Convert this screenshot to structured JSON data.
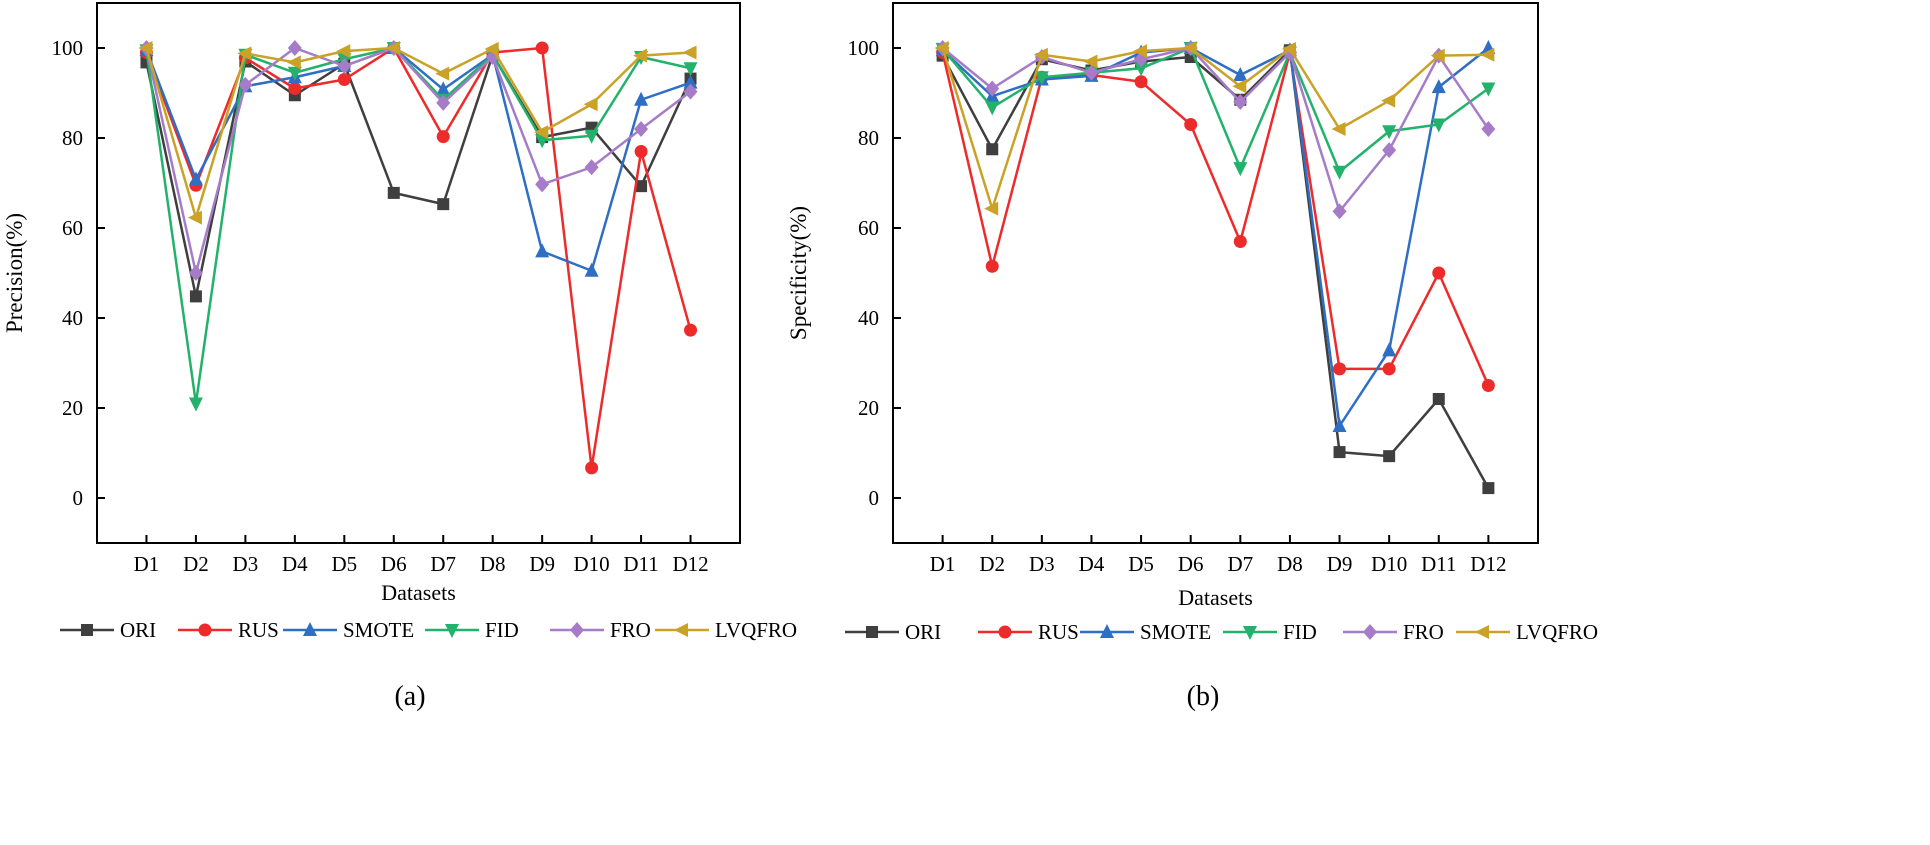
{
  "chart_data": [
    {
      "type": "line",
      "panel_label": "(a)",
      "title": "",
      "xlabel": "Datasets",
      "ylabel": "Precision(%)",
      "ylim": [
        -10,
        110
      ],
      "yticks": [
        0,
        20,
        40,
        60,
        80,
        100
      ],
      "categories": [
        "D1",
        "D2",
        "D3",
        "D4",
        "D5",
        "D6",
        "D7",
        "D8",
        "D9",
        "D10",
        "D11",
        "D12"
      ],
      "series": [
        {
          "name": "ORI",
          "marker": "square",
          "values": [
            96.8,
            44.8,
            97.0,
            89.5,
            96.5,
            67.8,
            65.3,
            98.5,
            80.2,
            82.3,
            69.3,
            93.2
          ]
        },
        {
          "name": "RUS",
          "marker": "circle",
          "values": [
            99.0,
            69.5,
            97.8,
            91.0,
            93.0,
            100.0,
            80.3,
            99.0,
            100.0,
            6.7,
            77.0,
            37.3
          ]
        },
        {
          "name": "SMOTE",
          "marker": "triangle-up",
          "values": [
            99.5,
            70.8,
            91.5,
            93.5,
            96.0,
            100.0,
            90.8,
            98.5,
            54.8,
            50.5,
            88.5,
            92.3
          ]
        },
        {
          "name": "FID",
          "marker": "triangle-down",
          "values": [
            99.5,
            21.0,
            98.5,
            94.5,
            97.5,
            100.0,
            88.5,
            98.5,
            79.5,
            80.5,
            98.0,
            95.5
          ]
        },
        {
          "name": "FRO",
          "marker": "diamond",
          "values": [
            100.0,
            50.0,
            91.8,
            100.0,
            96.0,
            100.0,
            87.8,
            98.0,
            69.7,
            73.5,
            82.0,
            90.3
          ]
        },
        {
          "name": "LVQFRO",
          "marker": "triangle-left",
          "values": [
            100.0,
            62.3,
            98.8,
            96.8,
            99.3,
            100.0,
            94.3,
            99.8,
            81.3,
            87.5,
            98.3,
            99.0
          ]
        }
      ]
    },
    {
      "type": "line",
      "panel_label": "(b)",
      "title": "",
      "xlabel": "Datasets",
      "ylabel": "Specificity(%)",
      "ylim": [
        -10,
        110
      ],
      "yticks": [
        0,
        20,
        40,
        60,
        80,
        100
      ],
      "categories": [
        "D1",
        "D2",
        "D3",
        "D4",
        "D5",
        "D6",
        "D7",
        "D8",
        "D9",
        "D10",
        "D11",
        "D12"
      ],
      "series": [
        {
          "name": "ORI",
          "marker": "square",
          "values": [
            98.3,
            77.5,
            97.5,
            95.0,
            97.0,
            98.0,
            88.5,
            99.5,
            10.2,
            9.3,
            22.0,
            2.2
          ]
        },
        {
          "name": "RUS",
          "marker": "circle",
          "values": [
            99.0,
            51.5,
            93.5,
            94.0,
            92.5,
            83.0,
            57.0,
            99.0,
            28.7,
            28.7,
            50.0,
            25.0
          ]
        },
        {
          "name": "SMOTE",
          "marker": "triangle-up",
          "values": [
            99.5,
            89.3,
            93.0,
            93.8,
            99.0,
            100.0,
            94.0,
            99.5,
            16.0,
            32.8,
            91.3,
            100.0
          ]
        },
        {
          "name": "FID",
          "marker": "triangle-down",
          "values": [
            99.8,
            86.8,
            93.5,
            94.5,
            95.5,
            100.0,
            73.3,
            99.0,
            72.5,
            81.5,
            83.0,
            91.0
          ]
        },
        {
          "name": "FRO",
          "marker": "diamond",
          "values": [
            100.0,
            91.0,
            98.0,
            94.5,
            97.5,
            100.0,
            88.0,
            99.0,
            63.7,
            77.3,
            98.3,
            82.0
          ]
        },
        {
          "name": "LVQFRO",
          "marker": "triangle-left",
          "values": [
            100.0,
            64.3,
            98.5,
            97.0,
            99.3,
            100.0,
            91.5,
            99.8,
            82.0,
            88.3,
            98.3,
            98.5
          ]
        }
      ]
    }
  ],
  "colors": {
    "ORI": "#3f3f3f",
    "RUS": "#ee2b2b",
    "SMOTE": "#2f6fc3",
    "FID": "#22b26b",
    "FRO": "#a67cc8",
    "LVQFRO": "#c9a227"
  }
}
